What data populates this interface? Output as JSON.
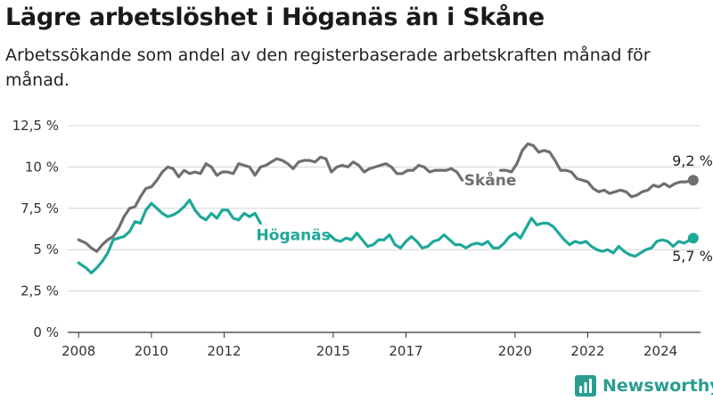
{
  "title": "Lägre arbetslöshet i Höganäs än i Skåne",
  "subtitle": "Arbetssökande som andel av den registerbaserade arbetskraften månad för månad.",
  "brand": "Newsworthy",
  "colors": {
    "skane": "#6f6e73",
    "hoganas": "#1ea89a",
    "grid": "#d4d4d4",
    "axis": "#333333"
  },
  "chart_data": {
    "type": "line",
    "ylim": [
      0,
      12.5
    ],
    "y_ticks": [
      0,
      2.5,
      5,
      7.5,
      10,
      12.5
    ],
    "y_tick_labels": [
      "0 %",
      "2,5 %",
      "5 %",
      "7,5 %",
      "10 %",
      "12,5 %"
    ],
    "x_range": [
      2007.7,
      2025.1
    ],
    "x_ticks": [
      2008,
      2010,
      2012,
      2015,
      2017,
      2020,
      2022,
      2024
    ],
    "x_tick_labels": [
      "2008",
      "2010",
      "2012",
      "2015",
      "2017",
      "2020",
      "2022",
      "2024"
    ],
    "grid": true,
    "series": [
      {
        "name": "Skåne",
        "color": "#6f6e73",
        "end_label": "9,2 %",
        "segments": [
          [
            [
              2008.0,
              5.6
            ],
            [
              2008.2,
              5.4
            ],
            [
              2008.35,
              5.1
            ],
            [
              2008.5,
              4.9
            ],
            [
              2008.65,
              5.3
            ],
            [
              2008.8,
              5.6
            ],
            [
              2008.95,
              5.8
            ],
            [
              2009.1,
              6.3
            ],
            [
              2009.25,
              7.0
            ],
            [
              2009.4,
              7.5
            ],
            [
              2009.55,
              7.6
            ],
            [
              2009.7,
              8.2
            ],
            [
              2009.85,
              8.7
            ],
            [
              2010.0,
              8.8
            ],
            [
              2010.15,
              9.2
            ],
            [
              2010.3,
              9.7
            ],
            [
              2010.45,
              10.0
            ],
            [
              2010.6,
              9.9
            ],
            [
              2010.75,
              9.4
            ],
            [
              2010.9,
              9.8
            ],
            [
              2011.05,
              9.6
            ],
            [
              2011.2,
              9.7
            ],
            [
              2011.35,
              9.6
            ],
            [
              2011.5,
              10.2
            ],
            [
              2011.65,
              10.0
            ],
            [
              2011.8,
              9.5
            ],
            [
              2011.95,
              9.7
            ],
            [
              2012.1,
              9.7
            ],
            [
              2012.25,
              9.6
            ],
            [
              2012.4,
              10.2
            ],
            [
              2012.55,
              10.1
            ],
            [
              2012.7,
              10.0
            ],
            [
              2012.85,
              9.5
            ],
            [
              2013.0,
              10.0
            ],
            [
              2013.15,
              10.1
            ],
            [
              2013.3,
              10.3
            ],
            [
              2013.45,
              10.5
            ],
            [
              2013.6,
              10.4
            ],
            [
              2013.75,
              10.2
            ],
            [
              2013.9,
              9.9
            ],
            [
              2014.05,
              10.3
            ],
            [
              2014.2,
              10.4
            ],
            [
              2014.35,
              10.4
            ],
            [
              2014.5,
              10.3
            ],
            [
              2014.65,
              10.6
            ],
            [
              2014.8,
              10.5
            ],
            [
              2014.95,
              9.7
            ],
            [
              2015.1,
              10.0
            ],
            [
              2015.25,
              10.1
            ],
            [
              2015.4,
              10.0
            ],
            [
              2015.55,
              10.3
            ],
            [
              2015.7,
              10.1
            ],
            [
              2015.85,
              9.7
            ],
            [
              2016.0,
              9.9
            ],
            [
              2016.15,
              10.0
            ],
            [
              2016.3,
              10.1
            ],
            [
              2016.45,
              10.2
            ],
            [
              2016.6,
              10.0
            ],
            [
              2016.75,
              9.6
            ],
            [
              2016.9,
              9.6
            ],
            [
              2017.05,
              9.8
            ],
            [
              2017.2,
              9.8
            ],
            [
              2017.35,
              10.1
            ],
            [
              2017.5,
              10.0
            ],
            [
              2017.65,
              9.7
            ],
            [
              2017.8,
              9.8
            ],
            [
              2017.95,
              9.8
            ],
            [
              2018.1,
              9.8
            ],
            [
              2018.25,
              9.9
            ],
            [
              2018.4,
              9.7
            ],
            [
              2018.55,
              9.2
            ]
          ],
          [
            [
              2019.6,
              9.8
            ],
            [
              2019.75,
              9.8
            ],
            [
              2019.9,
              9.7
            ],
            [
              2020.05,
              10.2
            ],
            [
              2020.2,
              11.0
            ],
            [
              2020.35,
              11.4
            ],
            [
              2020.5,
              11.3
            ],
            [
              2020.65,
              10.9
            ],
            [
              2020.8,
              11.0
            ],
            [
              2020.95,
              10.9
            ],
            [
              2021.1,
              10.4
            ],
            [
              2021.25,
              9.8
            ],
            [
              2021.4,
              9.8
            ],
            [
              2021.55,
              9.7
            ],
            [
              2021.7,
              9.3
            ],
            [
              2021.85,
              9.2
            ],
            [
              2022.0,
              9.1
            ],
            [
              2022.15,
              8.7
            ],
            [
              2022.3,
              8.5
            ],
            [
              2022.45,
              8.6
            ],
            [
              2022.6,
              8.4
            ],
            [
              2022.75,
              8.5
            ],
            [
              2022.9,
              8.6
            ],
            [
              2023.05,
              8.5
            ],
            [
              2023.2,
              8.2
            ],
            [
              2023.35,
              8.3
            ],
            [
              2023.5,
              8.5
            ],
            [
              2023.65,
              8.6
            ],
            [
              2023.8,
              8.9
            ],
            [
              2023.95,
              8.8
            ],
            [
              2024.1,
              9.0
            ],
            [
              2024.25,
              8.8
            ],
            [
              2024.4,
              9.0
            ],
            [
              2024.55,
              9.1
            ],
            [
              2024.7,
              9.1
            ],
            [
              2024.9,
              9.2
            ]
          ]
        ]
      },
      {
        "name": "Höganäs",
        "color": "#1ea89a",
        "end_label": "5,7 %",
        "segments": [
          [
            [
              2008.0,
              4.2
            ],
            [
              2008.2,
              3.9
            ],
            [
              2008.35,
              3.6
            ],
            [
              2008.5,
              3.9
            ],
            [
              2008.65,
              4.3
            ],
            [
              2008.8,
              4.8
            ],
            [
              2008.95,
              5.6
            ],
            [
              2009.1,
              5.7
            ],
            [
              2009.25,
              5.8
            ],
            [
              2009.4,
              6.1
            ],
            [
              2009.55,
              6.7
            ],
            [
              2009.7,
              6.6
            ],
            [
              2009.85,
              7.4
            ],
            [
              2010.0,
              7.8
            ],
            [
              2010.15,
              7.5
            ],
            [
              2010.3,
              7.2
            ],
            [
              2010.45,
              7.0
            ],
            [
              2010.6,
              7.1
            ],
            [
              2010.75,
              7.3
            ],
            [
              2010.9,
              7.6
            ],
            [
              2011.05,
              8.0
            ],
            [
              2011.2,
              7.4
            ],
            [
              2011.35,
              7.0
            ],
            [
              2011.5,
              6.8
            ],
            [
              2011.65,
              7.2
            ],
            [
              2011.8,
              6.9
            ],
            [
              2011.95,
              7.4
            ],
            [
              2012.1,
              7.4
            ],
            [
              2012.25,
              6.9
            ],
            [
              2012.4,
              6.8
            ],
            [
              2012.55,
              7.2
            ],
            [
              2012.7,
              7.0
            ],
            [
              2012.85,
              7.2
            ],
            [
              2013.0,
              6.6
            ]
          ],
          [
            [
              2014.9,
              5.9
            ],
            [
              2015.05,
              5.6
            ],
            [
              2015.2,
              5.5
            ],
            [
              2015.35,
              5.7
            ],
            [
              2015.5,
              5.6
            ],
            [
              2015.65,
              6.0
            ],
            [
              2015.8,
              5.6
            ],
            [
              2015.95,
              5.2
            ],
            [
              2016.1,
              5.3
            ],
            [
              2016.25,
              5.6
            ],
            [
              2016.4,
              5.6
            ],
            [
              2016.55,
              5.9
            ],
            [
              2016.7,
              5.3
            ],
            [
              2016.85,
              5.1
            ],
            [
              2017.0,
              5.5
            ],
            [
              2017.15,
              5.8
            ],
            [
              2017.3,
              5.5
            ],
            [
              2017.45,
              5.1
            ],
            [
              2017.6,
              5.2
            ],
            [
              2017.75,
              5.5
            ],
            [
              2017.9,
              5.6
            ],
            [
              2018.05,
              5.9
            ],
            [
              2018.2,
              5.6
            ],
            [
              2018.35,
              5.3
            ],
            [
              2018.5,
              5.3
            ],
            [
              2018.65,
              5.1
            ],
            [
              2018.8,
              5.3
            ],
            [
              2018.95,
              5.4
            ],
            [
              2019.1,
              5.3
            ],
            [
              2019.25,
              5.5
            ],
            [
              2019.4,
              5.1
            ],
            [
              2019.55,
              5.1
            ],
            [
              2019.7,
              5.4
            ],
            [
              2019.85,
              5.8
            ],
            [
              2020.0,
              6.0
            ],
            [
              2020.15,
              5.7
            ],
            [
              2020.3,
              6.3
            ],
            [
              2020.45,
              6.9
            ],
            [
              2020.6,
              6.5
            ],
            [
              2020.75,
              6.6
            ],
            [
              2020.9,
              6.6
            ],
            [
              2021.05,
              6.4
            ],
            [
              2021.2,
              6.0
            ],
            [
              2021.35,
              5.6
            ],
            [
              2021.5,
              5.3
            ],
            [
              2021.65,
              5.5
            ],
            [
              2021.8,
              5.4
            ],
            [
              2021.95,
              5.5
            ],
            [
              2022.1,
              5.2
            ],
            [
              2022.25,
              5.0
            ],
            [
              2022.4,
              4.9
            ],
            [
              2022.55,
              5.0
            ],
            [
              2022.7,
              4.8
            ],
            [
              2022.85,
              5.2
            ],
            [
              2023.0,
              4.9
            ],
            [
              2023.15,
              4.7
            ],
            [
              2023.3,
              4.6
            ],
            [
              2023.45,
              4.8
            ],
            [
              2023.6,
              5.0
            ],
            [
              2023.75,
              5.1
            ],
            [
              2023.9,
              5.5
            ],
            [
              2024.05,
              5.6
            ],
            [
              2024.2,
              5.5
            ],
            [
              2024.35,
              5.2
            ],
            [
              2024.5,
              5.5
            ],
            [
              2024.65,
              5.4
            ],
            [
              2024.9,
              5.7
            ]
          ]
        ]
      }
    ]
  }
}
